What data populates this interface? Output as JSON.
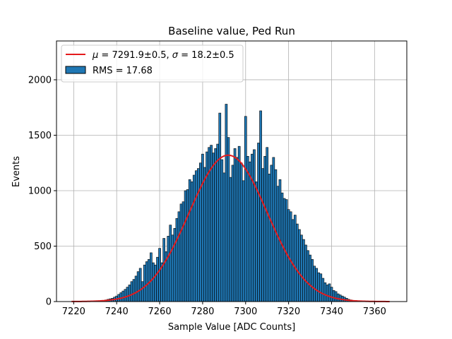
{
  "chart_data": {
    "type": "bar",
    "title": "Baseline value, Ped Run",
    "xlabel": "Sample Value [ADC Counts]",
    "ylabel": "Events",
    "xlim": [
      7212,
      7375
    ],
    "ylim": [
      0,
      2350
    ],
    "xticks": [
      7220,
      7240,
      7260,
      7280,
      7300,
      7320,
      7340,
      7360
    ],
    "yticks": [
      0,
      500,
      1000,
      1500,
      2000
    ],
    "grid": true,
    "legend_position": "upper-left",
    "bin_width": 1,
    "series": [
      {
        "name": "RMS = 17.68",
        "kind": "histogram",
        "color": "#1f77b4",
        "edgecolor": "#000000",
        "x": [
          7234,
          7235,
          7236,
          7237,
          7238,
          7239,
          7240,
          7241,
          7242,
          7243,
          7244,
          7245,
          7246,
          7247,
          7248,
          7249,
          7250,
          7251,
          7252,
          7253,
          7254,
          7255,
          7256,
          7257,
          7258,
          7259,
          7260,
          7261,
          7262,
          7263,
          7264,
          7265,
          7266,
          7267,
          7268,
          7269,
          7270,
          7271,
          7272,
          7273,
          7274,
          7275,
          7276,
          7277,
          7278,
          7279,
          7280,
          7281,
          7282,
          7283,
          7284,
          7285,
          7286,
          7287,
          7288,
          7289,
          7290,
          7291,
          7292,
          7293,
          7294,
          7295,
          7296,
          7297,
          7298,
          7299,
          7300,
          7301,
          7302,
          7303,
          7304,
          7305,
          7306,
          7307,
          7308,
          7309,
          7310,
          7311,
          7312,
          7313,
          7314,
          7315,
          7316,
          7317,
          7318,
          7319,
          7320,
          7321,
          7322,
          7323,
          7324,
          7325,
          7326,
          7327,
          7328,
          7329,
          7330,
          7331,
          7332,
          7333,
          7334,
          7335,
          7336,
          7337,
          7338,
          7339,
          7340,
          7341,
          7342,
          7343,
          7344,
          7345,
          7346,
          7347,
          7348,
          7349,
          7350
        ],
        "values": [
          10,
          15,
          20,
          25,
          30,
          40,
          50,
          65,
          80,
          95,
          110,
          130,
          150,
          180,
          200,
          230,
          270,
          300,
          180,
          330,
          360,
          380,
          440,
          350,
          330,
          400,
          480,
          350,
          570,
          450,
          590,
          690,
          600,
          660,
          750,
          810,
          880,
          900,
          1000,
          1010,
          1100,
          1080,
          1140,
          1180,
          1200,
          1250,
          1330,
          1210,
          1350,
          1390,
          1410,
          1340,
          1380,
          1420,
          1700,
          1280,
          1160,
          1780,
          1480,
          1120,
          1230,
          1380,
          1300,
          1400,
          1250,
          1090,
          1670,
          1310,
          1260,
          1330,
          1370,
          1080,
          1430,
          1720,
          1200,
          1310,
          1390,
          1150,
          1230,
          1300,
          1190,
          1040,
          1100,
          980,
          930,
          920,
          830,
          810,
          740,
          780,
          700,
          650,
          600,
          560,
          510,
          460,
          420,
          380,
          320,
          300,
          260,
          250,
          210,
          170,
          150,
          160,
          130,
          100,
          90,
          70,
          60,
          50,
          40,
          30,
          20,
          15,
          10
        ]
      },
      {
        "name": "μ = 7291.9±0.5, σ = 18.2±0.5",
        "kind": "gaussian-fit",
        "color": "#e41a1c",
        "mu": 7291.9,
        "sigma": 18.2,
        "amplitude": 1320,
        "x_range": [
          7219,
          7367
        ]
      }
    ]
  },
  "legend": {
    "fit_label_mu": "μ",
    "fit_label_rest1": " = 7291.9±0.5, ",
    "fit_label_sigma": "σ",
    "fit_label_rest2": " = 18.2±0.5",
    "hist_label": "RMS = 17.68"
  }
}
